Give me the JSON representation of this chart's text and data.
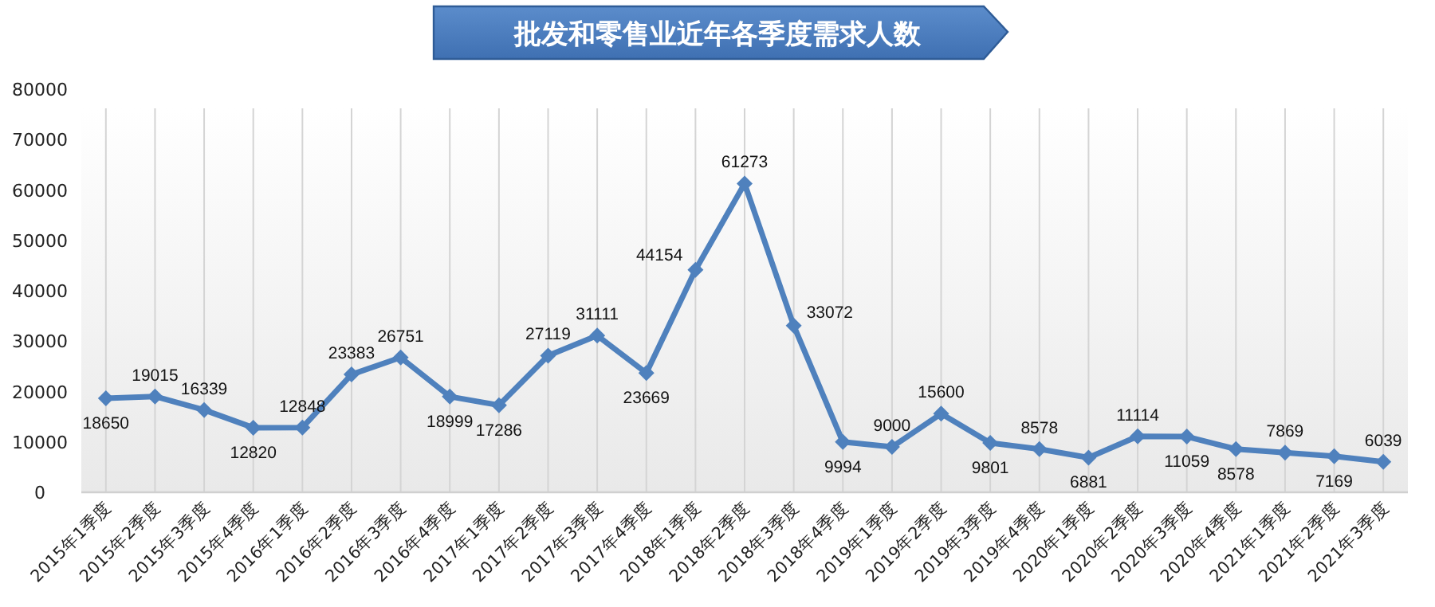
{
  "chart_data": {
    "type": "line",
    "title": "批发和零售业近年各季度需求人数",
    "categories": [
      "2015年1季度",
      "2015年2季度",
      "2015年3季度",
      "2015年4季度",
      "2016年1季度",
      "2016年2季度",
      "2016年3季度",
      "2016年4季度",
      "2017年1季度",
      "2017年2季度",
      "2017年3季度",
      "2017年4季度",
      "2018年1季度",
      "2018年2季度",
      "2018年3季度",
      "2018年4季度",
      "2019年1季度",
      "2019年2季度",
      "2019年3季度",
      "2019年4季度",
      "2020年1季度",
      "2020年2季度",
      "2020年3季度",
      "2020年4季度",
      "2021年1季度",
      "2021年2季度",
      "2021年3季度"
    ],
    "values": [
      18650,
      19015,
      16339,
      12820,
      12848,
      23383,
      26751,
      18999,
      17286,
      27119,
      31111,
      23669,
      44154,
      61273,
      33072,
      9994,
      9000,
      15600,
      9801,
      8578,
      6881,
      11114,
      11059,
      8578,
      7869,
      7169,
      6039
    ],
    "color": "#4f81bd",
    "ylim": [
      0,
      80000
    ],
    "yticks": [
      0,
      10000,
      20000,
      30000,
      40000,
      50000,
      60000,
      70000,
      80000
    ],
    "grid": "x",
    "marker": "diamond",
    "line_style": "solid",
    "data_labels": true
  }
}
